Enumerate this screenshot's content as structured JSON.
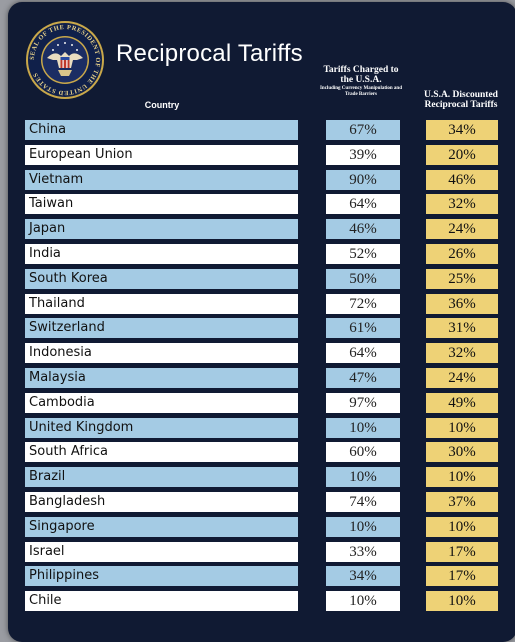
{
  "header": {
    "title": "Reciprocal Tariffs",
    "col_country": "Country",
    "col_charged_main": "Tariffs Charged to the U.S.A.",
    "col_charged_sub": "Including Currency Manipulation and Trade Barriers",
    "col_reciprocal": "U.S.A. Discounted Reciprocal Tariffs"
  },
  "seal": {
    "text": "SEAL OF THE PRESIDENT OF THE UNITED STATES"
  },
  "colors": {
    "board": "#101a33",
    "row_blue": "#a4cbe4",
    "row_white": "#ffffff",
    "reciprocal_yellow": "#eed276"
  },
  "rows": [
    {
      "country": "China",
      "charged": "67%",
      "reciprocal": "34%"
    },
    {
      "country": "European Union",
      "charged": "39%",
      "reciprocal": "20%"
    },
    {
      "country": "Vietnam",
      "charged": "90%",
      "reciprocal": "46%"
    },
    {
      "country": "Taiwan",
      "charged": "64%",
      "reciprocal": "32%"
    },
    {
      "country": "Japan",
      "charged": "46%",
      "reciprocal": "24%"
    },
    {
      "country": "India",
      "charged": "52%",
      "reciprocal": "26%"
    },
    {
      "country": "South Korea",
      "charged": "50%",
      "reciprocal": "25%"
    },
    {
      "country": "Thailand",
      "charged": "72%",
      "reciprocal": "36%"
    },
    {
      "country": "Switzerland",
      "charged": "61%",
      "reciprocal": "31%"
    },
    {
      "country": "Indonesia",
      "charged": "64%",
      "reciprocal": "32%"
    },
    {
      "country": "Malaysia",
      "charged": "47%",
      "reciprocal": "24%"
    },
    {
      "country": "Cambodia",
      "charged": "97%",
      "reciprocal": "49%"
    },
    {
      "country": "United Kingdom",
      "charged": "10%",
      "reciprocal": "10%"
    },
    {
      "country": "South Africa",
      "charged": "60%",
      "reciprocal": "30%"
    },
    {
      "country": "Brazil",
      "charged": "10%",
      "reciprocal": "10%"
    },
    {
      "country": "Bangladesh",
      "charged": "74%",
      "reciprocal": "37%"
    },
    {
      "country": "Singapore",
      "charged": "10%",
      "reciprocal": "10%"
    },
    {
      "country": "Israel",
      "charged": "33%",
      "reciprocal": "17%"
    },
    {
      "country": "Philippines",
      "charged": "34%",
      "reciprocal": "17%"
    },
    {
      "country": "Chile",
      "charged": "10%",
      "reciprocal": "10%"
    }
  ]
}
